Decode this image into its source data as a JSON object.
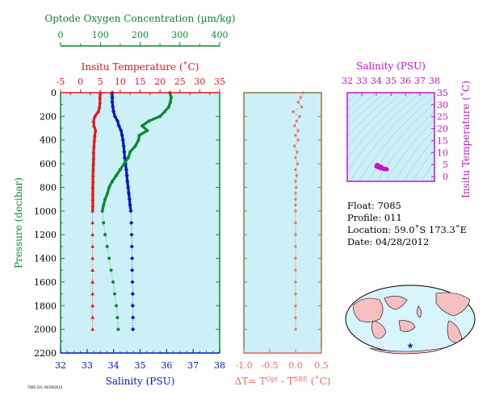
{
  "colors": {
    "oxygen": "#0a8a2e",
    "temperature": "#e8141a",
    "salinity": "#0018c8",
    "delta": "#f06a6a",
    "ts": "#cc10cc",
    "panel_bg": "#ccf0f8",
    "frame": "#7a6a1a"
  },
  "float_info": {
    "float": "Float:  7085",
    "profile": "Profile:  011",
    "location": "Location:  59.0˚S  173.3˚E",
    "date": "Date:  04/28/2012"
  },
  "tiny_label": "7085 011 04/28/2012",
  "map": {
    "marker_icon": "star-icon",
    "land_color": "#f6c0c0",
    "ocean_color": "#d8f4fc"
  },
  "chart_data": [
    {
      "type": "line",
      "id": "profile",
      "title": "",
      "ylabel": "Pressure (decibar)",
      "ylim": [
        2200,
        0
      ],
      "yticks": [
        "0",
        "200",
        "400",
        "600",
        "800",
        "1000",
        "1200",
        "1400",
        "1600",
        "1800",
        "2000",
        "2200"
      ],
      "axes": {
        "oxygen": {
          "label": "Optode Oxygen Concentration (µm/kg)",
          "lim": [
            0,
            400
          ],
          "ticks": [
            "0",
            "100",
            "200",
            "300",
            "400"
          ]
        },
        "temperature": {
          "label": "Insitu Temperature (˚C)",
          "lim": [
            -5,
            35
          ],
          "ticks": [
            "-5",
            "0",
            "5",
            "10",
            "15",
            "20",
            "25",
            "30",
            "35"
          ]
        },
        "salinity": {
          "label": "Salinity (PSU)",
          "lim": [
            32,
            38
          ],
          "ticks": [
            "32",
            "33",
            "34",
            "35",
            "36",
            "37",
            "38"
          ]
        }
      },
      "series": [
        {
          "key": "temperature",
          "axis": "temperature",
          "marker": "triangle",
          "points": [
            [
              0,
              5.0
            ],
            [
              40,
              4.9
            ],
            [
              80,
              4.9
            ],
            [
              120,
              4.8
            ],
            [
              160,
              4.5
            ],
            [
              200,
              3.6
            ],
            [
              240,
              3.3
            ],
            [
              280,
              3.4
            ],
            [
              320,
              3.8
            ],
            [
              360,
              3.6
            ],
            [
              400,
              3.5
            ],
            [
              450,
              3.4
            ],
            [
              500,
              3.3
            ],
            [
              550,
              3.3
            ],
            [
              600,
              3.25
            ],
            [
              650,
              3.2
            ],
            [
              700,
              3.15
            ],
            [
              750,
              3.15
            ],
            [
              800,
              3.1
            ],
            [
              850,
              3.1
            ],
            [
              900,
              3.1
            ],
            [
              950,
              3.1
            ],
            [
              1000,
              3.05
            ],
            [
              1100,
              3.05
            ],
            [
              1200,
              3.05
            ],
            [
              1300,
              3.05
            ],
            [
              1400,
              3.05
            ],
            [
              1500,
              3.05
            ],
            [
              1600,
              3.05
            ],
            [
              1700,
              3.05
            ],
            [
              1800,
              3.05
            ],
            [
              1900,
              3.05
            ],
            [
              2000,
              3.05
            ]
          ]
        },
        {
          "key": "salinity",
          "axis": "salinity",
          "marker": "diamond",
          "points": [
            [
              0,
              33.95
            ],
            [
              40,
              33.95
            ],
            [
              80,
              33.95
            ],
            [
              120,
              33.97
            ],
            [
              160,
              34.0
            ],
            [
              200,
              34.05
            ],
            [
              240,
              34.15
            ],
            [
              280,
              34.2
            ],
            [
              320,
              34.28
            ],
            [
              360,
              34.32
            ],
            [
              400,
              34.35
            ],
            [
              450,
              34.38
            ],
            [
              500,
              34.4
            ],
            [
              550,
              34.42
            ],
            [
              600,
              34.45
            ],
            [
              650,
              34.48
            ],
            [
              700,
              34.5
            ],
            [
              750,
              34.52
            ],
            [
              800,
              34.55
            ],
            [
              850,
              34.57
            ],
            [
              900,
              34.6
            ],
            [
              950,
              34.62
            ],
            [
              1000,
              34.65
            ],
            [
              1100,
              34.67
            ],
            [
              1200,
              34.68
            ],
            [
              1300,
              34.69
            ],
            [
              1400,
              34.7
            ],
            [
              1500,
              34.7
            ],
            [
              1600,
              34.71
            ],
            [
              1700,
              34.72
            ],
            [
              1800,
              34.72
            ],
            [
              1900,
              34.73
            ],
            [
              2000,
              34.73
            ]
          ]
        },
        {
          "key": "oxygen",
          "axis": "oxygen",
          "marker": "circle",
          "points": [
            [
              0,
              275
            ],
            [
              40,
              278
            ],
            [
              80,
              276
            ],
            [
              120,
              272
            ],
            [
              160,
              262
            ],
            [
              200,
              250
            ],
            [
              240,
              222
            ],
            [
              280,
              205
            ],
            [
              320,
              218
            ],
            [
              360,
              198
            ],
            [
              400,
              196
            ],
            [
              450,
              188
            ],
            [
              500,
              175
            ],
            [
              550,
              170
            ],
            [
              600,
              160
            ],
            [
              650,
              150
            ],
            [
              700,
              140
            ],
            [
              750,
              130
            ],
            [
              800,
              122
            ],
            [
              850,
              118
            ],
            [
              900,
              112
            ],
            [
              950,
              108
            ],
            [
              1000,
              105
            ],
            [
              1100,
              108
            ],
            [
              1200,
              112
            ],
            [
              1300,
              117
            ],
            [
              1400,
              122
            ],
            [
              1500,
              127
            ],
            [
              1600,
              132
            ],
            [
              1700,
              136
            ],
            [
              1800,
              140
            ],
            [
              1900,
              143
            ],
            [
              2000,
              145
            ]
          ]
        }
      ]
    },
    {
      "type": "line",
      "id": "delta",
      "title": "",
      "xlabel": "ΔT= T^Opt - T^SBE (˚C)",
      "xlim": [
        -1.0,
        0.5
      ],
      "xticks": [
        "-1.0",
        "-0.5",
        "0.0",
        "0.5"
      ],
      "ylim": [
        2200,
        0
      ],
      "series": [
        {
          "key": "delta",
          "marker": "circle",
          "points": [
            [
              0,
              0.15
            ],
            [
              40,
              0.1
            ],
            [
              80,
              0.05
            ],
            [
              120,
              0.12
            ],
            [
              160,
              -0.05
            ],
            [
              200,
              0.08
            ],
            [
              240,
              0.02
            ],
            [
              280,
              -0.02
            ],
            [
              320,
              0.05
            ],
            [
              360,
              0.0
            ],
            [
              400,
              0.05
            ],
            [
              450,
              -0.02
            ],
            [
              500,
              0.03
            ],
            [
              550,
              0.0
            ],
            [
              600,
              0.04
            ],
            [
              650,
              0.0
            ],
            [
              700,
              0.02
            ],
            [
              750,
              0.0
            ],
            [
              800,
              0.01
            ],
            [
              850,
              0.0
            ],
            [
              900,
              0.0
            ],
            [
              950,
              0.0
            ],
            [
              1000,
              0.0
            ],
            [
              1100,
              0.0
            ],
            [
              1200,
              0.0
            ],
            [
              1300,
              0.0
            ],
            [
              1400,
              0.0
            ],
            [
              1500,
              0.0
            ],
            [
              1600,
              0.0
            ],
            [
              1700,
              0.0
            ],
            [
              1800,
              0.0
            ],
            [
              1900,
              0.0
            ],
            [
              2000,
              0.0
            ]
          ]
        }
      ]
    },
    {
      "type": "scatter",
      "id": "ts",
      "title": "",
      "xlabel": "Salinity (PSU)",
      "ylabel": "Insitu Temperature (˚C)",
      "xlim": [
        32,
        38
      ],
      "ylim": [
        -2,
        35
      ],
      "xticks": [
        "32",
        "33",
        "34",
        "35",
        "36",
        "37",
        "38"
      ],
      "yticks": [
        "0",
        "5",
        "10",
        "15",
        "20",
        "25",
        "30",
        "35"
      ],
      "points": [
        [
          34.0,
          4.2
        ],
        [
          34.1,
          4.0
        ],
        [
          34.15,
          4.6
        ],
        [
          34.3,
          3.4
        ],
        [
          34.4,
          3.6
        ],
        [
          34.5,
          3.2
        ],
        [
          34.6,
          3.1
        ],
        [
          34.7,
          3.05
        ],
        [
          34.2,
          3.8
        ],
        [
          34.35,
          4.1
        ],
        [
          34.55,
          3.3
        ],
        [
          34.65,
          3.2
        ],
        [
          34.72,
          3.05
        ],
        [
          34.05,
          4.9
        ],
        [
          34.25,
          3.9
        ]
      ]
    }
  ]
}
